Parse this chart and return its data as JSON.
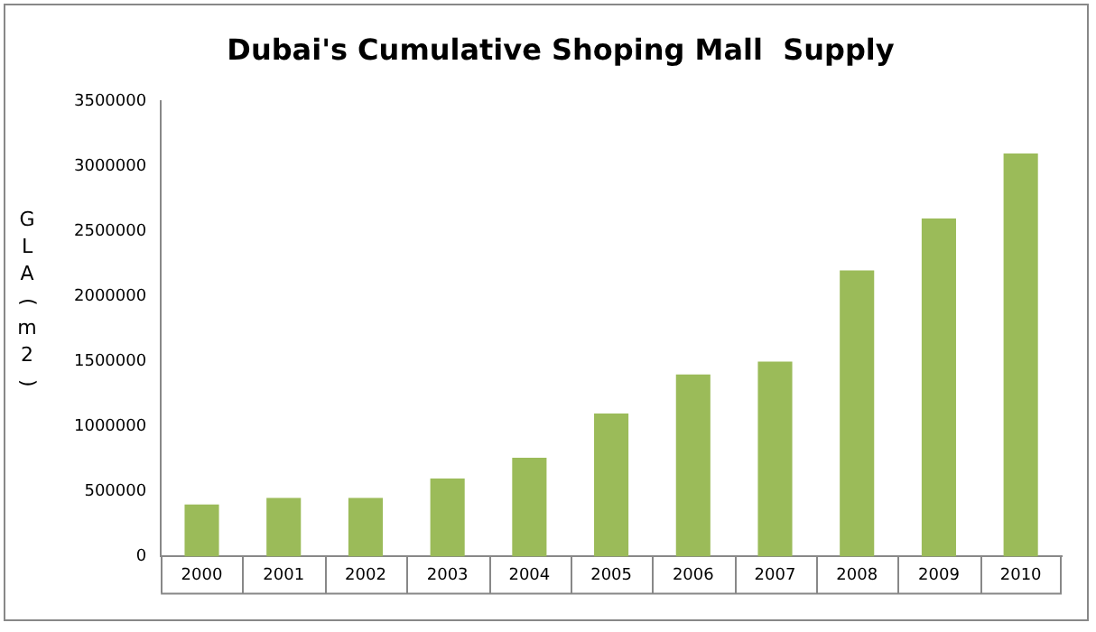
{
  "chart_data": {
    "type": "bar",
    "title": "Dubai's Cumulative Shoping Mall  Supply",
    "ylabel": "GLA (m2)",
    "categories": [
      "2000",
      "2001",
      "2002",
      "2003",
      "2004",
      "2005",
      "2006",
      "2007",
      "2008",
      "2009",
      "2010"
    ],
    "values": [
      400000,
      450000,
      450000,
      600000,
      760000,
      1100000,
      1400000,
      1500000,
      2200000,
      2600000,
      3100000
    ],
    "color": "#9bbb59",
    "ylim": [
      0,
      3500000
    ],
    "yticks": [
      0,
      500000,
      1000000,
      1500000,
      2000000,
      2500000,
      3000000,
      3500000
    ],
    "grid": false
  }
}
